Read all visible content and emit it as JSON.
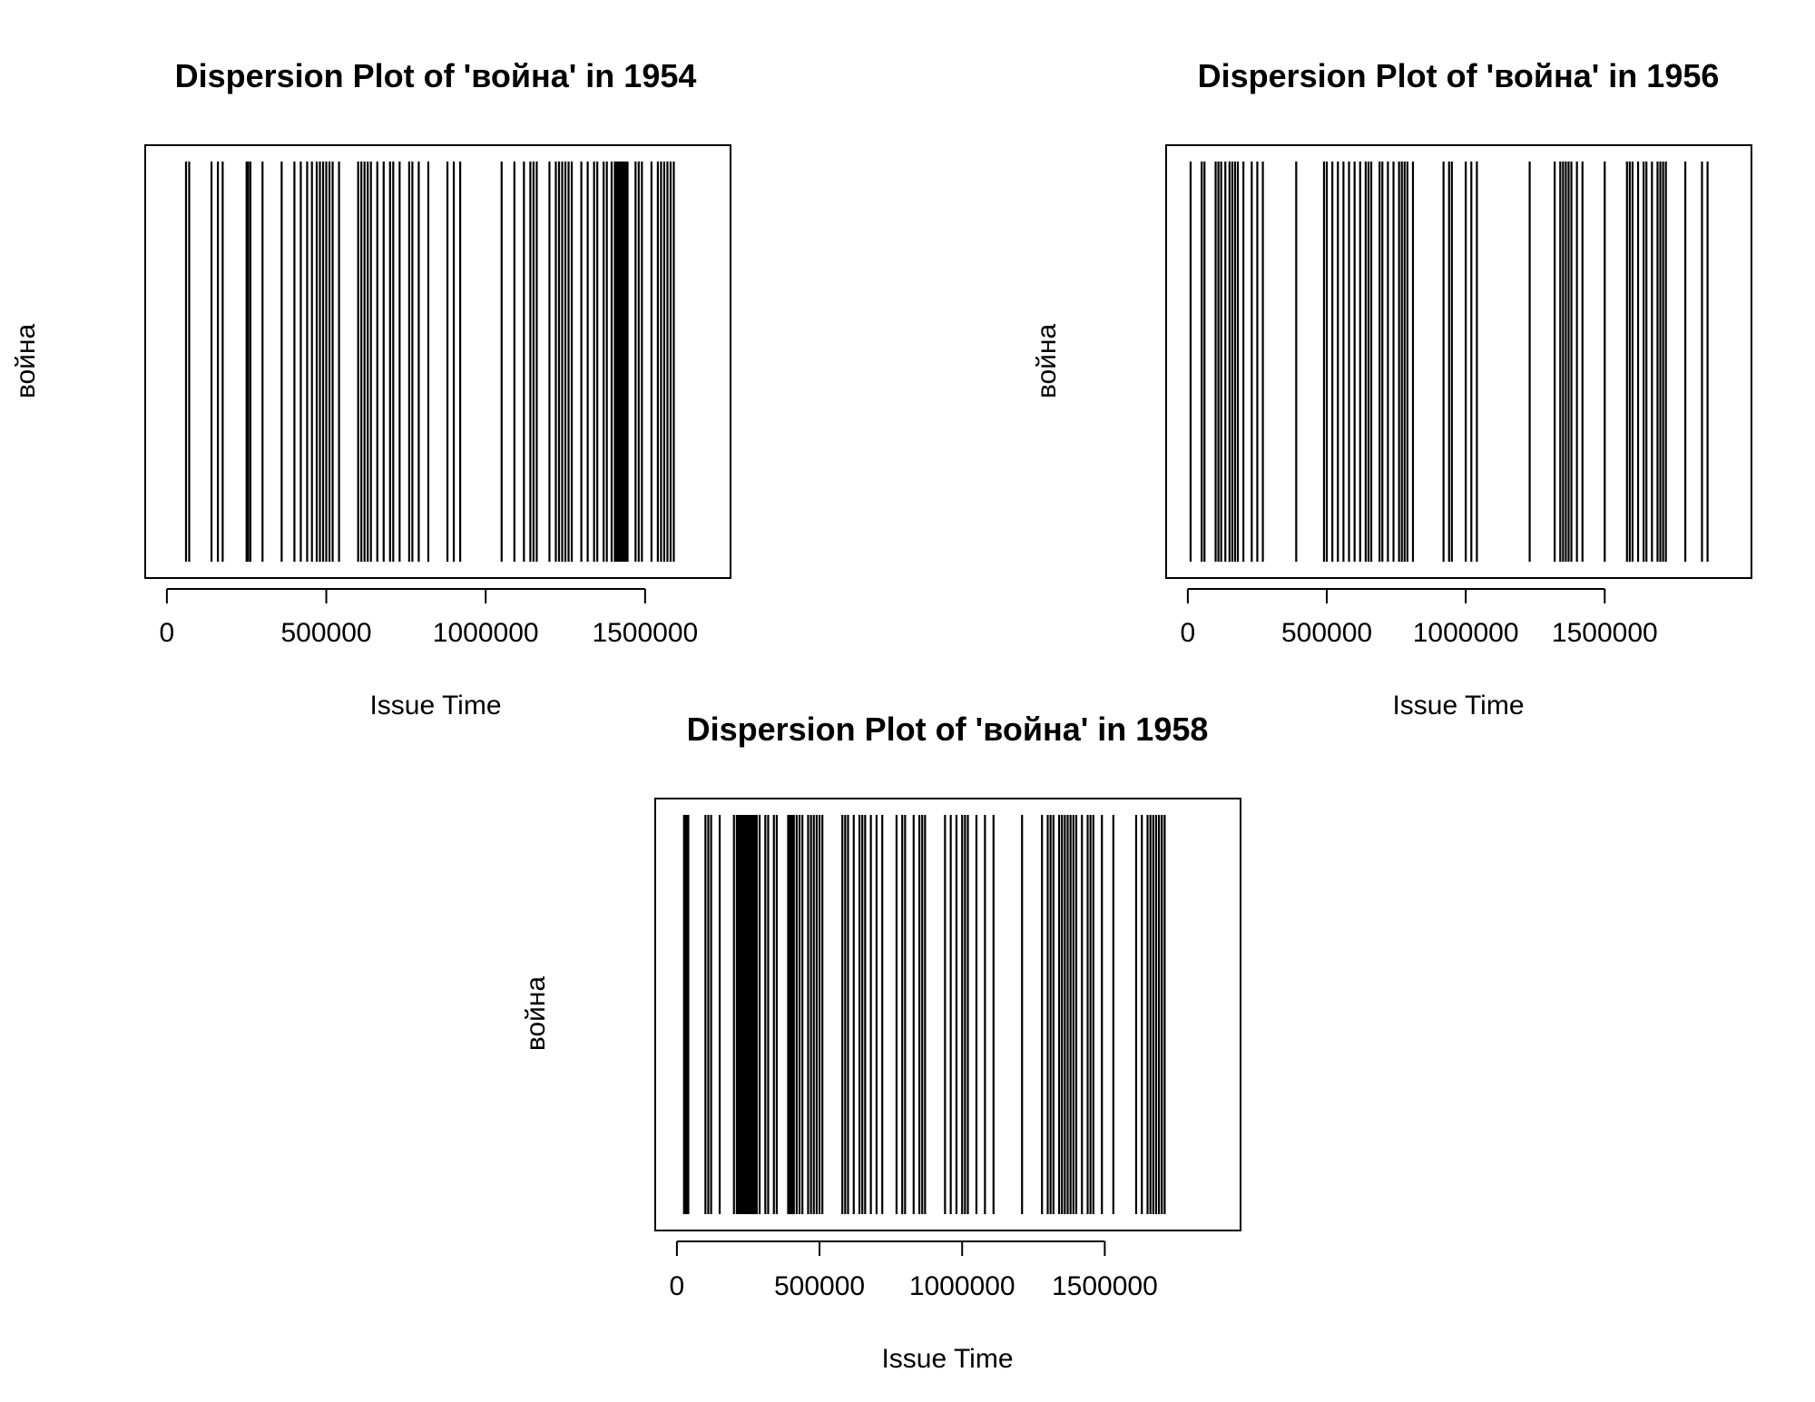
{
  "chart_data": [
    {
      "type": "dispersion",
      "title": "Dispersion Plot of 'война' in 1954",
      "xlabel": "Issue Time",
      "ylabel": "война",
      "xlim": [
        0,
        1700000
      ],
      "xticks": [
        0,
        500000,
        1000000,
        1500000
      ],
      "xtick_labels": [
        "0",
        "500000",
        "1000000",
        "1500000"
      ],
      "x": [
        60000,
        70000,
        140000,
        160000,
        175000,
        250000,
        255000,
        262000,
        300000,
        360000,
        400000,
        420000,
        440000,
        455000,
        470000,
        480000,
        490000,
        500000,
        510000,
        520000,
        540000,
        600000,
        610000,
        620000,
        630000,
        640000,
        660000,
        680000,
        700000,
        710000,
        730000,
        760000,
        770000,
        790000,
        820000,
        880000,
        900000,
        920000,
        1050000,
        1090000,
        1120000,
        1140000,
        1150000,
        1160000,
        1200000,
        1220000,
        1230000,
        1240000,
        1250000,
        1260000,
        1270000,
        1300000,
        1320000,
        1340000,
        1350000,
        1370000,
        1380000,
        1395000,
        1405000,
        1410000,
        1415000,
        1420000,
        1425000,
        1430000,
        1435000,
        1440000,
        1445000,
        1470000,
        1480000,
        1490000,
        1520000,
        1540000,
        1550000,
        1560000,
        1570000,
        1580000,
        1590000
      ]
    },
    {
      "type": "dispersion",
      "title": "Dispersion Plot of 'война' in 1956",
      "xlabel": "Issue Time",
      "ylabel": "война",
      "xlim": [
        0,
        1950000
      ],
      "xticks": [
        0,
        500000,
        1000000,
        1500000
      ],
      "xtick_labels": [
        "0",
        "500000",
        "1000000",
        "1500000"
      ],
      "x": [
        10000,
        50000,
        60000,
        100000,
        110000,
        120000,
        135000,
        150000,
        160000,
        170000,
        180000,
        200000,
        230000,
        250000,
        270000,
        390000,
        490000,
        500000,
        520000,
        540000,
        560000,
        580000,
        600000,
        620000,
        640000,
        650000,
        660000,
        690000,
        700000,
        720000,
        740000,
        760000,
        770000,
        780000,
        790000,
        810000,
        920000,
        940000,
        950000,
        1000000,
        1020000,
        1040000,
        1230000,
        1320000,
        1340000,
        1350000,
        1360000,
        1370000,
        1380000,
        1400000,
        1420000,
        1500000,
        1580000,
        1590000,
        1600000,
        1620000,
        1640000,
        1650000,
        1670000,
        1690000,
        1700000,
        1710000,
        1720000,
        1790000,
        1850000,
        1870000
      ]
    },
    {
      "type": "dispersion",
      "title": "Dispersion Plot of 'война' in 1958",
      "xlabel": "Issue Time",
      "ylabel": "война",
      "xlim": [
        0,
        1900000
      ],
      "xticks": [
        0,
        500000,
        1000000,
        1500000
      ],
      "xtick_labels": [
        "0",
        "500000",
        "1000000",
        "1500000"
      ],
      "x": [
        25000,
        30000,
        35000,
        40000,
        100000,
        110000,
        120000,
        150000,
        200000,
        210000,
        215000,
        220000,
        225000,
        230000,
        235000,
        240000,
        245000,
        250000,
        255000,
        260000,
        265000,
        270000,
        275000,
        280000,
        290000,
        310000,
        320000,
        340000,
        350000,
        390000,
        395000,
        400000,
        405000,
        410000,
        420000,
        430000,
        440000,
        460000,
        470000,
        480000,
        490000,
        500000,
        510000,
        580000,
        590000,
        600000,
        620000,
        640000,
        650000,
        660000,
        680000,
        700000,
        720000,
        770000,
        790000,
        800000,
        830000,
        850000,
        860000,
        870000,
        940000,
        960000,
        980000,
        1000000,
        1010000,
        1020000,
        1050000,
        1080000,
        1110000,
        1210000,
        1280000,
        1300000,
        1310000,
        1320000,
        1340000,
        1350000,
        1360000,
        1370000,
        1380000,
        1390000,
        1400000,
        1420000,
        1440000,
        1450000,
        1460000,
        1490000,
        1530000,
        1610000,
        1630000,
        1650000,
        1660000,
        1670000,
        1680000,
        1690000,
        1700000,
        1710000
      ]
    }
  ]
}
